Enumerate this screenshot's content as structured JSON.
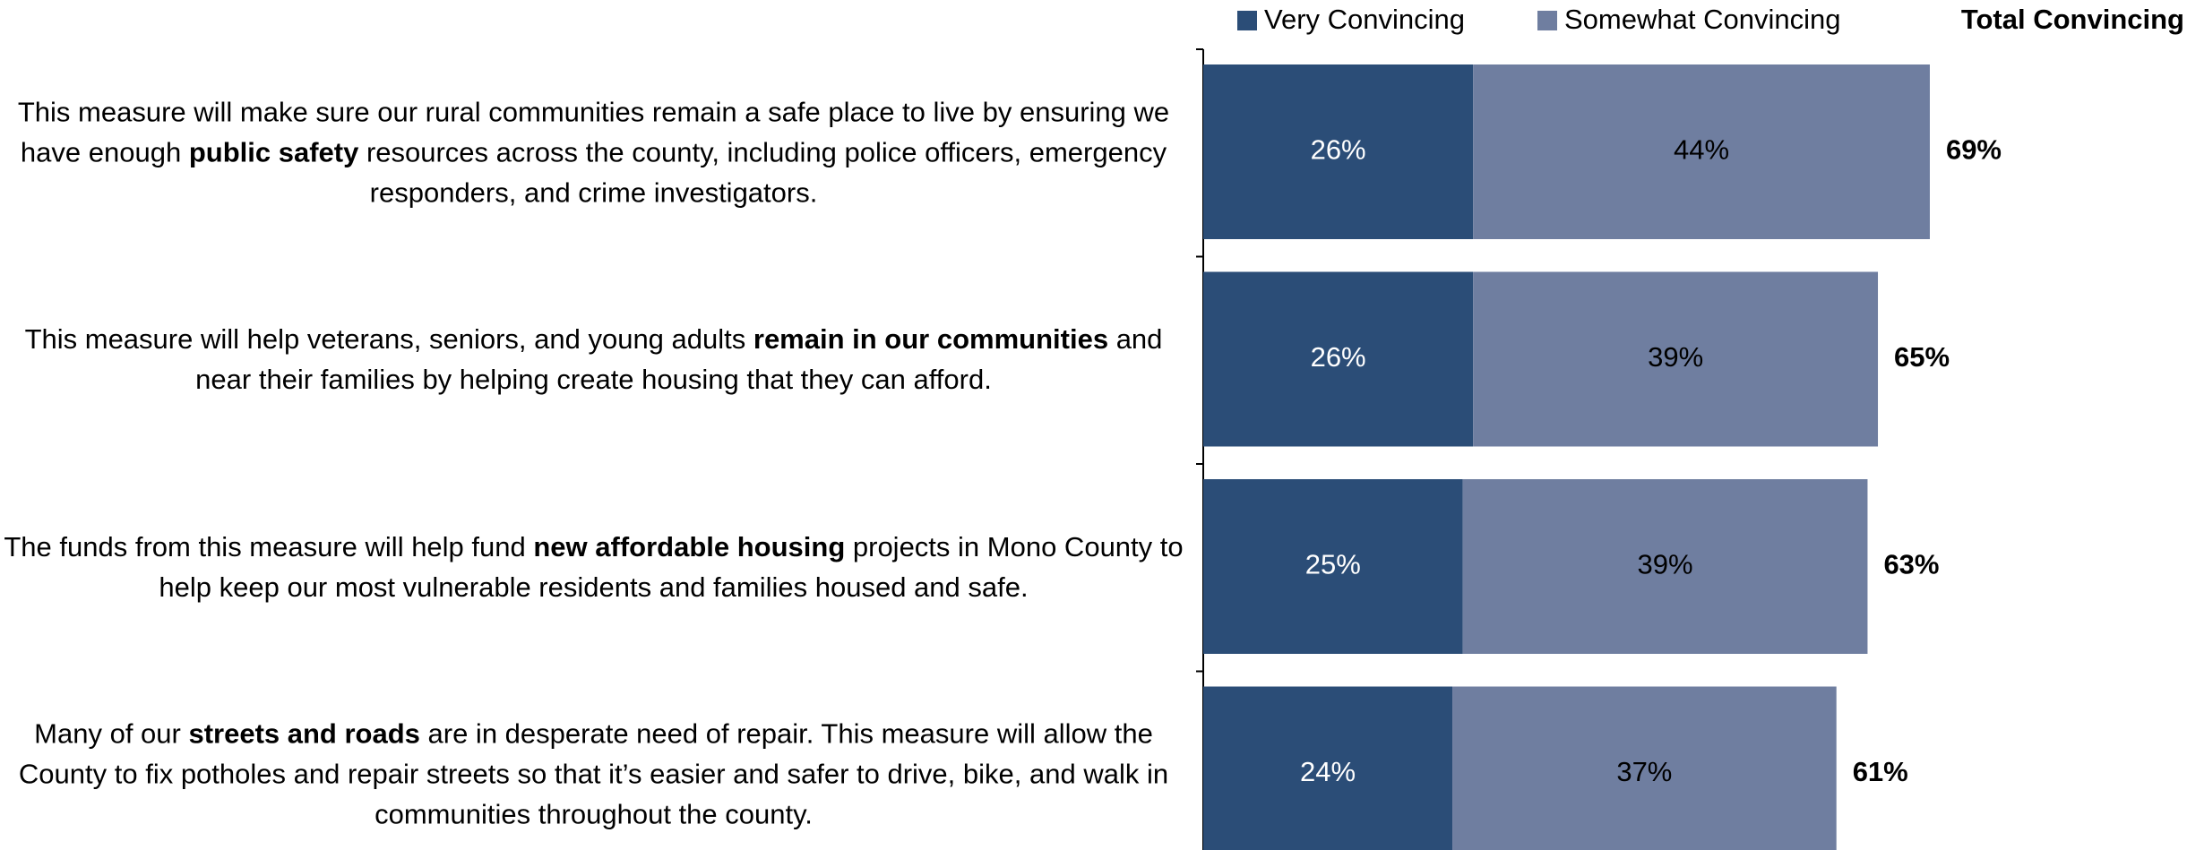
{
  "chart_data": {
    "type": "stacked-bar-horizontal",
    "categories": [
      [
        {
          "text": "This measure will make sure our rural communities remain a safe place to live by ensuring we have enough ",
          "bold": false
        },
        {
          "text": "public safety",
          "bold": true
        },
        {
          "text": " resources across the county, including police officers, emergency responders, and crime investigators.",
          "bold": false
        }
      ],
      [
        {
          "text": "This measure will help veterans, seniors, and young adults ",
          "bold": false
        },
        {
          "text": "remain in our communities",
          "bold": true
        },
        {
          "text": " and near their families by helping create housing that they can afford.",
          "bold": false
        }
      ],
      [
        {
          "text": "The funds from this measure will help fund ",
          "bold": false
        },
        {
          "text": "new affordable housing",
          "bold": true
        },
        {
          "text": " projects in Mono County to help keep our most vulnerable residents and families housed and safe.",
          "bold": false
        }
      ],
      [
        {
          "text": "Many of our ",
          "bold": false
        },
        {
          "text": "streets and roads",
          "bold": true
        },
        {
          "text": " are in desperate need of repair. This measure will allow the County to fix potholes and repair streets so that it’s easier and safer to drive, bike, and walk in communities throughout the county.",
          "bold": false
        }
      ]
    ],
    "series": [
      {
        "name": "Very Convincing",
        "color": "#2b4d77",
        "label_color": "#ffffff",
        "values": [
          26,
          26,
          25,
          24
        ],
        "value_labels": [
          "26%",
          "26%",
          "25%",
          "24%"
        ]
      },
      {
        "name": "Somewhat Convincing",
        "color": "#6f7ea0",
        "label_color": "#000000",
        "values": [
          44,
          39,
          39,
          37
        ],
        "value_labels": [
          "44%",
          "39%",
          "39%",
          "37%"
        ]
      }
    ],
    "totals": {
      "name": "Total Convincing",
      "values": [
        69,
        65,
        63,
        61
      ],
      "value_labels": [
        "69%",
        "65%",
        "63%",
        "61%"
      ]
    },
    "xlim": [
      0,
      94
    ]
  }
}
